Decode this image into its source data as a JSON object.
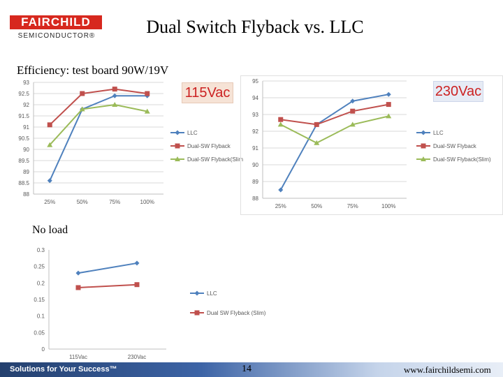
{
  "header": {
    "logo_top": "FAIRCHILD",
    "logo_bottom": "SEMICONDUCTOR®",
    "title": "Dual Switch Flyback vs. LLC"
  },
  "subtitle": "Efficiency: test board 90W/19V",
  "section_noload": "No load",
  "footer": {
    "tagline": "Solutions for Your Success™",
    "page": "14",
    "url": "www.fairchildsemi.com"
  },
  "colors": {
    "llc": "#4f81bd",
    "dual_sw": "#c0504d",
    "slim": "#9bbb59",
    "footer_bar": "#3d64a6"
  },
  "chart_data": [
    {
      "type": "line",
      "label": "115Vac",
      "categories": [
        "25%",
        "50%",
        "75%",
        "100%"
      ],
      "ylim": [
        88,
        93
      ],
      "yticks": [
        "88",
        "88.5",
        "89",
        "89.5",
        "90",
        "90.5",
        "91",
        "91.5",
        "92",
        "92.5",
        "93"
      ],
      "grid": true,
      "legend_position": "right",
      "series": [
        {
          "name": "LLC",
          "values": [
            88.6,
            91.8,
            92.4,
            92.4
          ]
        },
        {
          "name": "Dual-SW Flyback",
          "values": [
            91.1,
            92.5,
            92.7,
            92.5
          ]
        },
        {
          "name": "Dual-SW Flyback(Slim",
          "values": [
            90.2,
            91.8,
            92.0,
            91.7
          ]
        }
      ]
    },
    {
      "type": "line",
      "label": "230Vac",
      "categories": [
        "25%",
        "50%",
        "75%",
        "100%"
      ],
      "ylim": [
        88,
        95
      ],
      "yticks": [
        "88",
        "89",
        "90",
        "91",
        "92",
        "93",
        "94",
        "95"
      ],
      "grid": true,
      "legend_position": "right",
      "series": [
        {
          "name": "LLC",
          "values": [
            88.5,
            92.4,
            93.8,
            94.2
          ]
        },
        {
          "name": "Dual-SW Flyback",
          "values": [
            92.7,
            92.4,
            93.2,
            93.6
          ]
        },
        {
          "name": "Dual-SW Flyback(Slim)",
          "values": [
            92.4,
            91.3,
            92.4,
            92.9
          ]
        }
      ]
    },
    {
      "type": "line",
      "categories": [
        "115Vac",
        "230Vac"
      ],
      "ylim": [
        0,
        0.3
      ],
      "yticks": [
        "0",
        "0.05",
        "0.1",
        "0.15",
        "0.2",
        "0.25",
        "0.3"
      ],
      "grid": false,
      "legend_position": "right",
      "series": [
        {
          "name": "LLC",
          "values": [
            0.23,
            0.26
          ]
        },
        {
          "name": "Dual SW Flyback (Slim)",
          "values": [
            0.186,
            0.195
          ]
        }
      ]
    }
  ]
}
